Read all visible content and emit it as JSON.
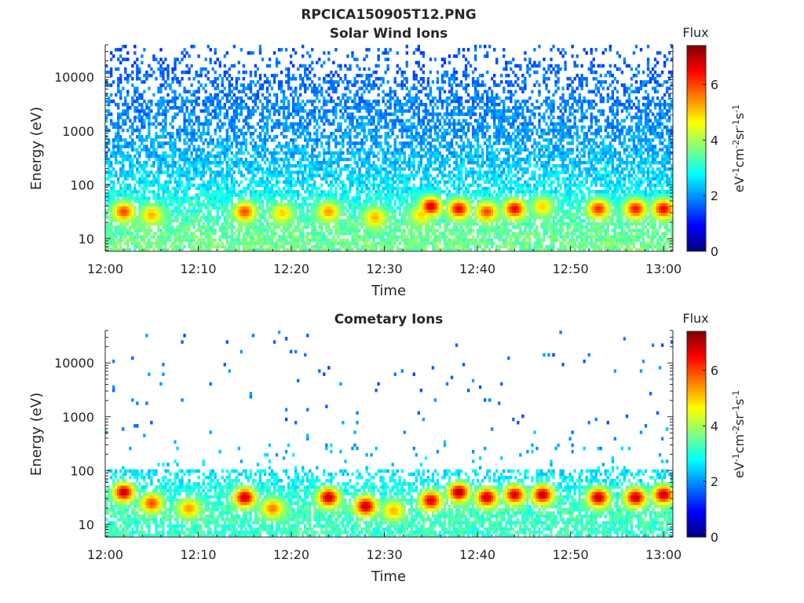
{
  "figure": {
    "title": "RPCICA150905T12.PNG"
  },
  "colors": {
    "axis": "#262626",
    "colormap": [
      "#00007f",
      "#0000ff",
      "#007fff",
      "#00ffff",
      "#7fff7f",
      "#ffff00",
      "#ff7f00",
      "#ff0000",
      "#7f0000"
    ]
  },
  "chart_data": [
    {
      "type": "heatmap",
      "title": "Solar Wind Ions",
      "xlabel": "Time",
      "ylabel": "Energy (eV)",
      "x_range": [
        "12:00",
        "13:01"
      ],
      "x_ticks": [
        "12:00",
        "12:10",
        "12:20",
        "12:30",
        "12:40",
        "12:50",
        "13:00"
      ],
      "y_scale": "log",
      "y_range": [
        5.8,
        40000
      ],
      "y_ticks": [
        10,
        100,
        1000,
        10000
      ],
      "y_tick_labels": [
        "10",
        "100",
        "1000",
        "10000"
      ],
      "colorbar": {
        "title": "Flux",
        "label": "eV-1cm-2sr-1s-1",
        "range": [
          0,
          7.4
        ],
        "ticks": [
          0,
          2,
          4,
          6
        ],
        "tick_labels": [
          "0",
          "2",
          "4",
          "6"
        ]
      },
      "description_values": {
        "background_flux_by_energy": [
          {
            "energy_eV": 8,
            "flux": 3.6
          },
          {
            "energy_eV": 20,
            "flux": 3.4
          },
          {
            "energy_eV": 50,
            "flux": 3.0
          },
          {
            "energy_eV": 100,
            "flux": 2.6
          },
          {
            "energy_eV": 300,
            "flux": 2.3
          },
          {
            "energy_eV": 1000,
            "flux": 2.0
          },
          {
            "energy_eV": 5000,
            "flux": 1.8
          },
          {
            "energy_eV": 20000,
            "flux": 1.6
          }
        ],
        "bursts": [
          {
            "time": "12:02",
            "energy_eV": 32,
            "flux": 6.0
          },
          {
            "time": "12:05",
            "energy_eV": 28,
            "flux": 5.2
          },
          {
            "time": "12:15",
            "energy_eV": 32,
            "flux": 6.0
          },
          {
            "time": "12:19",
            "energy_eV": 30,
            "flux": 5.0
          },
          {
            "time": "12:24",
            "energy_eV": 32,
            "flux": 5.4
          },
          {
            "time": "12:29",
            "energy_eV": 25,
            "flux": 5.2
          },
          {
            "time": "12:34",
            "energy_eV": 28,
            "flux": 5.0
          },
          {
            "time": "12:35",
            "energy_eV": 40,
            "flux": 6.8
          },
          {
            "time": "12:38",
            "energy_eV": 36,
            "flux": 6.6
          },
          {
            "time": "12:41",
            "energy_eV": 32,
            "flux": 6.0
          },
          {
            "time": "12:44",
            "energy_eV": 36,
            "flux": 6.6
          },
          {
            "time": "12:47",
            "energy_eV": 40,
            "flux": 5.0
          },
          {
            "time": "12:53",
            "energy_eV": 36,
            "flux": 6.2
          },
          {
            "time": "12:57",
            "energy_eV": 36,
            "flux": 6.4
          },
          {
            "time": "13:00",
            "energy_eV": 36,
            "flux": 6.6
          }
        ]
      }
    },
    {
      "type": "heatmap",
      "title": "Cometary Ions",
      "xlabel": "Time",
      "ylabel": "Energy (eV)",
      "x_range": [
        "12:00",
        "13:01"
      ],
      "x_ticks": [
        "12:00",
        "12:10",
        "12:20",
        "12:30",
        "12:40",
        "12:50",
        "13:00"
      ],
      "y_scale": "log",
      "y_range": [
        5.8,
        40000
      ],
      "y_ticks": [
        10,
        100,
        1000,
        10000
      ],
      "y_tick_labels": [
        "10",
        "100",
        "1000",
        "10000"
      ],
      "colorbar": {
        "title": "Flux",
        "label": "eV-1cm-2sr-1s-1",
        "range": [
          0,
          7.4
        ],
        "ticks": [
          0,
          2,
          4,
          6
        ],
        "tick_labels": [
          "0",
          "2",
          "4",
          "6"
        ]
      },
      "description_values": {
        "background_flux_by_energy": [
          {
            "energy_eV": 8,
            "flux": 3.2
          },
          {
            "energy_eV": 20,
            "flux": 3.3
          },
          {
            "energy_eV": 60,
            "flux": 2.8
          },
          {
            "energy_eV": 120,
            "flux": 2.5
          },
          {
            "energy_eV": 1000,
            "flux": 1.8
          },
          {
            "energy_eV": 10000,
            "flux": 1.8
          }
        ],
        "bursts": [
          {
            "time": "12:02",
            "energy_eV": 40,
            "flux": 7.0
          },
          {
            "time": "12:05",
            "energy_eV": 25,
            "flux": 6.0
          },
          {
            "time": "12:09",
            "energy_eV": 20,
            "flux": 5.4
          },
          {
            "time": "12:15",
            "energy_eV": 32,
            "flux": 7.0
          },
          {
            "time": "12:18",
            "energy_eV": 20,
            "flux": 5.6
          },
          {
            "time": "12:24",
            "energy_eV": 32,
            "flux": 7.0
          },
          {
            "time": "12:28",
            "energy_eV": 22,
            "flux": 7.0
          },
          {
            "time": "12:31",
            "energy_eV": 18,
            "flux": 5.2
          },
          {
            "time": "12:35",
            "energy_eV": 28,
            "flux": 6.8
          },
          {
            "time": "12:38",
            "energy_eV": 40,
            "flux": 7.2
          },
          {
            "time": "12:41",
            "energy_eV": 32,
            "flux": 7.0
          },
          {
            "time": "12:44",
            "energy_eV": 36,
            "flux": 6.8
          },
          {
            "time": "12:47",
            "energy_eV": 36,
            "flux": 7.0
          },
          {
            "time": "12:53",
            "energy_eV": 32,
            "flux": 7.0
          },
          {
            "time": "12:57",
            "energy_eV": 32,
            "flux": 7.0
          },
          {
            "time": "13:00",
            "energy_eV": 36,
            "flux": 7.0
          }
        ]
      }
    }
  ]
}
